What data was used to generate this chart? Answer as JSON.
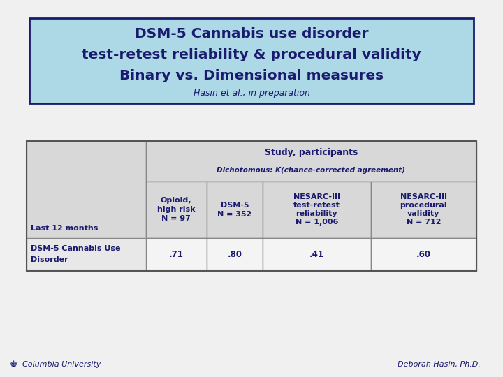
{
  "title_line1": "DSM-5 Cannabis use disorder",
  "title_line2": "test-retest reliability & procedural validity",
  "title_line3": "Binary vs. Dimensional measures",
  "subtitle": "Hasin et al., in preparation",
  "title_bg_color": "#add8e6",
  "title_border_color": "#1a1a6e",
  "title_text_color": "#1a1a6e",
  "bg_color": "#f0f0f0",
  "col_header_text": "Study, participants",
  "col_subheader_text": "Dichotomous: Κ̇(chance-corrected agreement)",
  "col1_lines": [
    "Opioid,",
    "high risk",
    "N = 97"
  ],
  "col2_lines": [
    "DSM-5",
    "N = 352"
  ],
  "col3_lines": [
    "NESARC-III",
    "test-retest",
    "reliability",
    "N = 1,006"
  ],
  "col4_lines": [
    "NESARC-III",
    "procedural",
    "validity",
    "N = 712"
  ],
  "row_label1": "Last 12 months",
  "row_label2a": "DSM-5 Cannabis Use",
  "row_label2b": "Disorder",
  "data_row": [
    ".71",
    ".80",
    ".41",
    ".60"
  ],
  "footer_left": "Columbia University",
  "footer_right": "Deborah Hasin, Ph.D.",
  "footer_color": "#1a1a6e",
  "cell_gray1": "#d8d8d8",
  "cell_gray2": "#e8e8e8",
  "cell_white": "#f4f4f4",
  "border_color": "#888888",
  "text_color": "#1a1a6e"
}
